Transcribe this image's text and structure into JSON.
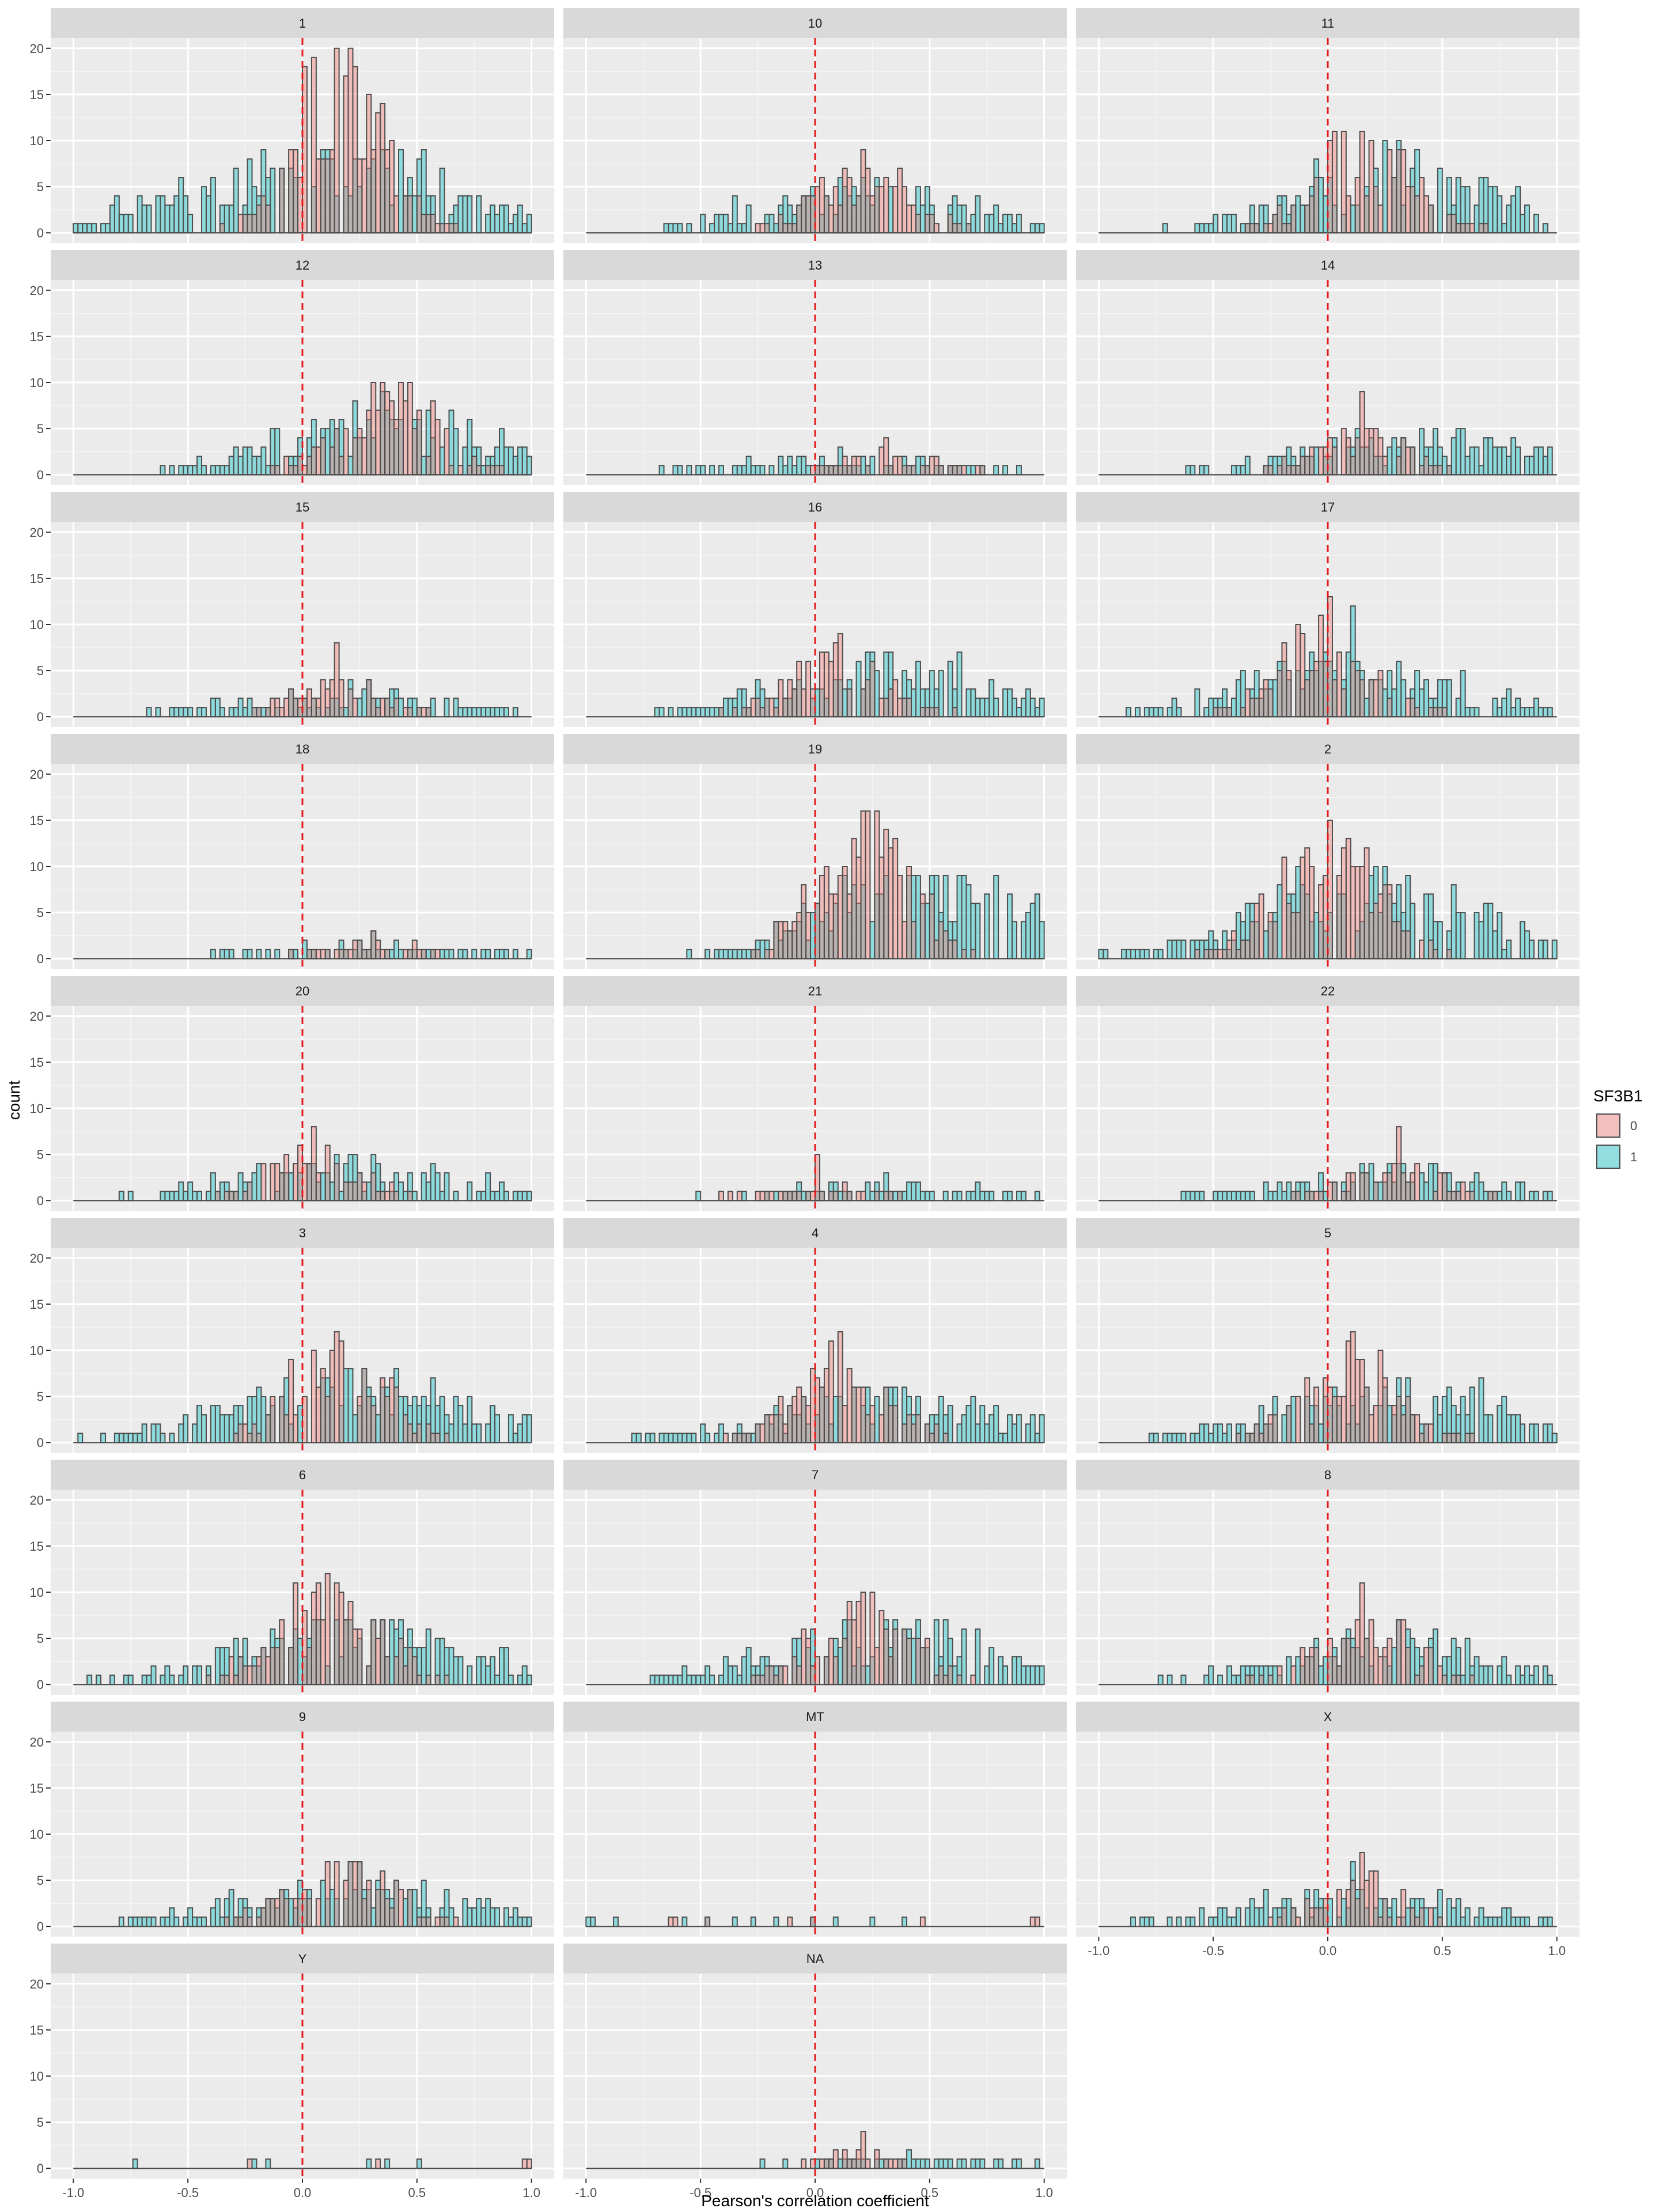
{
  "chart_data": {
    "type": "histogram",
    "facet_wrap_by": "chromosome",
    "xlabel": "Pearson's correlation coefficient",
    "ylabel": "count",
    "xlim": [
      -1.0,
      1.0
    ],
    "ylim": [
      0,
      20
    ],
    "x_ticks": [
      -1.0,
      -0.5,
      0.0,
      0.5,
      1.0
    ],
    "x_tick_labels": [
      "-1.0",
      "-0.5",
      "0.0",
      "0.5",
      "1.0"
    ],
    "y_ticks": [
      0,
      5,
      10,
      15,
      20
    ],
    "y_tick_labels": [
      "0",
      "5",
      "10",
      "15",
      "20"
    ],
    "reference_line": {
      "x": 0.0,
      "style": "dashed",
      "color": "#e41a1c"
    },
    "grid": true,
    "legend": {
      "title": "SF3B1",
      "placement": "right",
      "entries": [
        {
          "label": "0",
          "color": "#F8766D"
        },
        {
          "label": "1",
          "color": "#00BFC4"
        }
      ]
    },
    "panel_background": "#ebebeb",
    "strip_background": "#d9d9d9",
    "bar_outline": "#4d4d4d",
    "panels": [
      {
        "label": "1",
        "peak0": 0.15,
        "peak1": 0.1,
        "max0": 20,
        "max1": 9,
        "spread0": 0.2,
        "spread1": 0.55,
        "total0": 360,
        "total1": 460
      },
      {
        "label": "10",
        "peak0": 0.2,
        "peak1": 0.2,
        "max0": 9,
        "max1": 6,
        "spread0": 0.22,
        "spread1": 0.45,
        "total0": 150,
        "total1": 220
      },
      {
        "label": "11",
        "peak0": 0.15,
        "peak1": 0.3,
        "max0": 11,
        "max1": 10,
        "spread0": 0.22,
        "spread1": 0.45,
        "total0": 200,
        "total1": 300
      },
      {
        "label": "12",
        "peak0": 0.35,
        "peak1": 0.35,
        "max0": 10,
        "max1": 9,
        "spread0": 0.22,
        "spread1": 0.45,
        "total0": 190,
        "total1": 290
      },
      {
        "label": "13",
        "peak0": 0.3,
        "peak1": 0.1,
        "max0": 4,
        "max1": 3,
        "spread0": 0.25,
        "spread1": 0.5,
        "total0": 50,
        "total1": 80
      },
      {
        "label": "14",
        "peak0": 0.15,
        "peak1": 0.4,
        "max0": 9,
        "max1": 5,
        "spread0": 0.2,
        "spread1": 0.5,
        "total0": 110,
        "total1": 190
      },
      {
        "label": "15",
        "peak0": 0.15,
        "peak1": 0.2,
        "max0": 8,
        "max1": 4,
        "spread0": 0.22,
        "spread1": 0.5,
        "total0": 80,
        "total1": 120
      },
      {
        "label": "16",
        "peak0": 0.1,
        "peak1": 0.3,
        "max0": 9,
        "max1": 7,
        "spread0": 0.22,
        "spread1": 0.45,
        "total0": 150,
        "total1": 240
      },
      {
        "label": "17",
        "peak0": 0.0,
        "peak1": 0.1,
        "max0": 13,
        "max1": 12,
        "spread0": 0.22,
        "spread1": 0.45,
        "total0": 190,
        "total1": 280
      },
      {
        "label": "18",
        "peak0": 0.3,
        "peak1": 0.3,
        "max0": 3,
        "max1": 3,
        "spread0": 0.25,
        "spread1": 0.5,
        "total0": 40,
        "total1": 60
      },
      {
        "label": "19",
        "peak0": 0.2,
        "peak1": 0.5,
        "max0": 16,
        "max1": 9,
        "spread0": 0.2,
        "spread1": 0.45,
        "total0": 300,
        "total1": 380
      },
      {
        "label": "2",
        "peak0": 0.0,
        "peak1": 0.2,
        "max0": 15,
        "max1": 10,
        "spread0": 0.22,
        "spread1": 0.5,
        "total0": 280,
        "total1": 380
      },
      {
        "label": "20",
        "peak0": 0.05,
        "peak1": 0.2,
        "max0": 8,
        "max1": 5,
        "spread0": 0.2,
        "spread1": 0.5,
        "total0": 110,
        "total1": 170
      },
      {
        "label": "21",
        "peak0": 0.0,
        "peak1": 0.3,
        "max0": 5,
        "max1": 3,
        "spread0": 0.25,
        "spread1": 0.5,
        "total0": 40,
        "total1": 70
      },
      {
        "label": "22",
        "peak0": 0.3,
        "peak1": 0.3,
        "max0": 8,
        "max1": 4,
        "spread0": 0.22,
        "spread1": 0.5,
        "total0": 90,
        "total1": 140
      },
      {
        "label": "3",
        "peak0": 0.15,
        "peak1": 0.2,
        "max0": 12,
        "max1": 8,
        "spread0": 0.22,
        "spread1": 0.5,
        "total0": 220,
        "total1": 330
      },
      {
        "label": "4",
        "peak0": 0.1,
        "peak1": 0.3,
        "max0": 12,
        "max1": 6,
        "spread0": 0.22,
        "spread1": 0.5,
        "total0": 170,
        "total1": 250
      },
      {
        "label": "5",
        "peak0": 0.1,
        "peak1": 0.3,
        "max0": 12,
        "max1": 7,
        "spread0": 0.22,
        "spread1": 0.5,
        "total0": 190,
        "total1": 280
      },
      {
        "label": "6",
        "peak0": 0.1,
        "peak1": 0.2,
        "max0": 12,
        "max1": 7,
        "spread0": 0.22,
        "spread1": 0.5,
        "total0": 230,
        "total1": 330
      },
      {
        "label": "7",
        "peak0": 0.2,
        "peak1": 0.3,
        "max0": 10,
        "max1": 7,
        "spread0": 0.22,
        "spread1": 0.5,
        "total0": 180,
        "total1": 270
      },
      {
        "label": "8",
        "peak0": 0.15,
        "peak1": 0.3,
        "max0": 11,
        "max1": 7,
        "spread0": 0.22,
        "spread1": 0.5,
        "total0": 140,
        "total1": 210
      },
      {
        "label": "9",
        "peak0": 0.15,
        "peak1": 0.2,
        "max0": 7,
        "max1": 7,
        "spread0": 0.22,
        "spread1": 0.5,
        "total0": 160,
        "total1": 230
      },
      {
        "label": "MT",
        "peak0": 0.2,
        "peak1": -0.2,
        "max0": 1,
        "max1": 1,
        "spread0": 0.3,
        "spread1": 0.5,
        "total0": 8,
        "total1": 12
      },
      {
        "label": "X",
        "peak0": 0.15,
        "peak1": 0.1,
        "max0": 8,
        "max1": 7,
        "spread0": 0.22,
        "spread1": 0.5,
        "total0": 100,
        "total1": 160
      },
      {
        "label": "Y",
        "peak0": 0.5,
        "peak1": 0.0,
        "max0": 1,
        "max1": 1,
        "spread0": 0.3,
        "spread1": 0.5,
        "total0": 4,
        "total1": 6
      },
      {
        "label": "NA",
        "peak0": 0.2,
        "peak1": 0.4,
        "max0": 4,
        "max1": 2,
        "spread0": 0.2,
        "spread1": 0.5,
        "total0": 30,
        "total1": 40
      }
    ]
  }
}
